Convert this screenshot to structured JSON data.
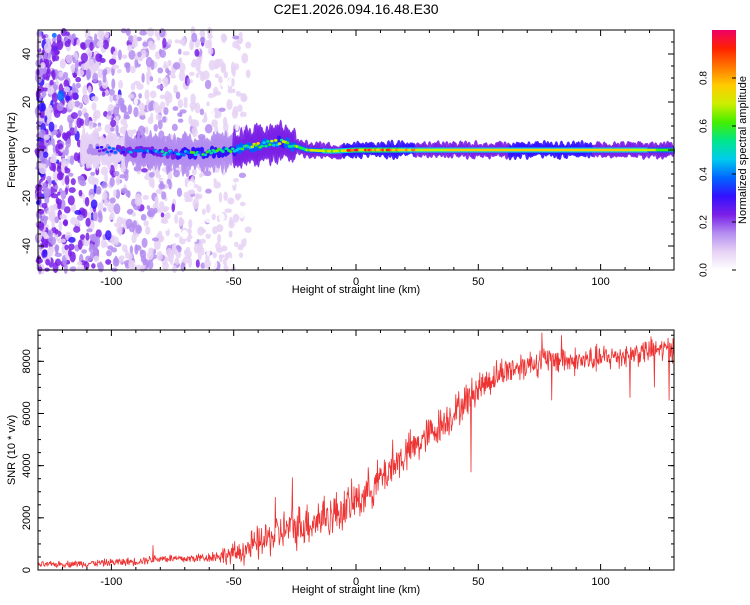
{
  "title": "C2E1.2026.094.16.48.E30",
  "chart_data": [
    {
      "type": "heatmap",
      "name": "spectrogram",
      "xlabel": "Height of straight line (km)",
      "ylabel": "Frequency (Hz)",
      "xlim": [
        -130,
        130
      ],
      "ylim": [
        -50,
        50
      ],
      "xticks": [
        -100,
        -50,
        0,
        50,
        100
      ],
      "yticks": [
        -40,
        -20,
        0,
        20,
        40
      ],
      "colorbar": {
        "label": "Normalized spectral amplitude",
        "range": [
          0,
          1
        ],
        "ticks": [
          "0.0",
          "0.2",
          "0.4",
          "0.6",
          "0.8"
        ],
        "colormap": [
          "#ffffff",
          "#e6d2f5",
          "#b38cf0",
          "#7a1fe6",
          "#3311ff",
          "#0066ff",
          "#00ccee",
          "#00e68a",
          "#44ee00",
          "#ccee00",
          "#ffcc00",
          "#ff7700",
          "#ff2200",
          "#ee0066"
        ]
      },
      "ridge": [
        {
          "x": -110,
          "f": 0.5,
          "amp": 0.18
        },
        {
          "x": -100,
          "f": 0.0,
          "amp": 0.3
        },
        {
          "x": -90,
          "f": -0.5,
          "amp": 0.35
        },
        {
          "x": -80,
          "f": -1.0,
          "amp": 0.4
        },
        {
          "x": -70,
          "f": -1.5,
          "amp": 0.45
        },
        {
          "x": -60,
          "f": -1.0,
          "amp": 0.5
        },
        {
          "x": -50,
          "f": 0.0,
          "amp": 0.55
        },
        {
          "x": -40,
          "f": 2.0,
          "amp": 0.6
        },
        {
          "x": -30,
          "f": 3.5,
          "amp": 0.55
        },
        {
          "x": -20,
          "f": 0.0,
          "amp": 0.65
        },
        {
          "x": -10,
          "f": -0.5,
          "amp": 0.7
        },
        {
          "x": 0,
          "f": 0.0,
          "amp": 0.85
        },
        {
          "x": 10,
          "f": 0.0,
          "amp": 0.85
        },
        {
          "x": 20,
          "f": 0.0,
          "amp": 0.8
        },
        {
          "x": 30,
          "f": 0.0,
          "amp": 0.72
        },
        {
          "x": 50,
          "f": 0.0,
          "amp": 0.75
        },
        {
          "x": 70,
          "f": 0.0,
          "amp": 0.78
        },
        {
          "x": 90,
          "f": 0.0,
          "amp": 0.78
        },
        {
          "x": 110,
          "f": 0.0,
          "amp": 0.75
        },
        {
          "x": 130,
          "f": 0.0,
          "amp": 0.6
        }
      ],
      "noise_region": [
        -130,
        -50
      ]
    },
    {
      "type": "line",
      "name": "snr",
      "xlabel": "Height of straight line (km)",
      "ylabel": "SNR (10 * v/v)",
      "xlim": [
        -130,
        130
      ],
      "ylim": [
        0,
        9200
      ],
      "xticks": [
        -100,
        -50,
        0,
        50,
        100
      ],
      "yticks": [
        0,
        2000,
        4000,
        6000,
        8000
      ],
      "color": "#ee3333",
      "trend": [
        {
          "x": -130,
          "y": 200
        },
        {
          "x": -110,
          "y": 250
        },
        {
          "x": -90,
          "y": 330
        },
        {
          "x": -80,
          "y": 450
        },
        {
          "x": -70,
          "y": 420
        },
        {
          "x": -60,
          "y": 500
        },
        {
          "x": -50,
          "y": 600
        },
        {
          "x": -40,
          "y": 1000
        },
        {
          "x": -30,
          "y": 1500
        },
        {
          "x": -20,
          "y": 1800
        },
        {
          "x": -10,
          "y": 2100
        },
        {
          "x": 0,
          "y": 2600
        },
        {
          "x": 10,
          "y": 3500
        },
        {
          "x": 20,
          "y": 4400
        },
        {
          "x": 30,
          "y": 5200
        },
        {
          "x": 40,
          "y": 6000
        },
        {
          "x": 50,
          "y": 7000
        },
        {
          "x": 60,
          "y": 7600
        },
        {
          "x": 70,
          "y": 7900
        },
        {
          "x": 80,
          "y": 8100
        },
        {
          "x": 90,
          "y": 8000
        },
        {
          "x": 100,
          "y": 8100
        },
        {
          "x": 110,
          "y": 8250
        },
        {
          "x": 120,
          "y": 8400
        },
        {
          "x": 130,
          "y": 8500
        }
      ],
      "noise_envelope": [
        {
          "x": -130,
          "amp": 120
        },
        {
          "x": -60,
          "amp": 200
        },
        {
          "x": -40,
          "amp": 700
        },
        {
          "x": -20,
          "amp": 900
        },
        {
          "x": 10,
          "amp": 800
        },
        {
          "x": 40,
          "amp": 700
        },
        {
          "x": 60,
          "amp": 600
        },
        {
          "x": 90,
          "amp": 550
        },
        {
          "x": 130,
          "amp": 500
        }
      ],
      "spikes": [
        {
          "x": -83,
          "y": 950
        },
        {
          "x": -33,
          "y": 2800
        },
        {
          "x": -26,
          "y": 3550
        },
        {
          "x": -13,
          "y": 2850
        },
        {
          "x": 0,
          "y": 3150
        },
        {
          "x": 15,
          "y": 5000
        },
        {
          "x": 21,
          "y": 4900
        },
        {
          "x": 47,
          "y": 3750
        },
        {
          "x": 76,
          "y": 9100
        },
        {
          "x": 80,
          "y": 6500
        },
        {
          "x": 84,
          "y": 9000
        },
        {
          "x": 112,
          "y": 6600
        },
        {
          "x": 122,
          "y": 7000
        },
        {
          "x": 128,
          "y": 6500
        }
      ]
    }
  ]
}
